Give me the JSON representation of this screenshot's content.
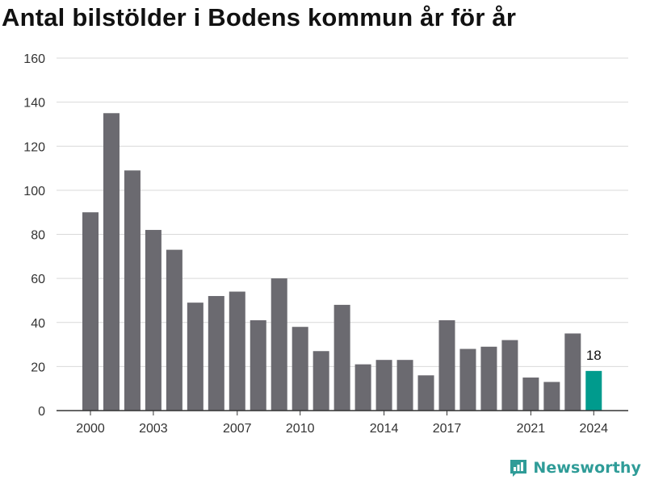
{
  "page": {
    "title": "Antal bilstölder i Bodens kommun år för år",
    "brand": "Newsworthy",
    "brand_icon": "newsworthy-logo-icon"
  },
  "colors": {
    "bar": "#6b6a70",
    "highlight": "#009b8d",
    "grid": "#d9d9d9",
    "axis": "#333333",
    "text": "#333333",
    "brand": "#2f9c98"
  },
  "chart_data": {
    "type": "bar",
    "title": "Antal bilstölder i Bodens kommun år för år",
    "xlabel": "",
    "ylabel": "",
    "categories": [
      "2000",
      "2001",
      "2002",
      "2003",
      "2004",
      "2005",
      "2006",
      "2007",
      "2008",
      "2009",
      "2010",
      "2011",
      "2012",
      "2013",
      "2014",
      "2015",
      "2016",
      "2017",
      "2018",
      "2019",
      "2020",
      "2021",
      "2022",
      "2023",
      "2024"
    ],
    "values": [
      90,
      135,
      109,
      82,
      73,
      49,
      52,
      54,
      41,
      60,
      38,
      27,
      48,
      21,
      23,
      23,
      16,
      41,
      28,
      29,
      32,
      15,
      13,
      35,
      18
    ],
    "x_tick_labels": [
      "2000",
      "2003",
      "2007",
      "2010",
      "2014",
      "2017",
      "2021",
      "2024"
    ],
    "y_ticks": [
      0,
      20,
      40,
      60,
      80,
      100,
      120,
      140,
      160
    ],
    "ylim": [
      0,
      160
    ],
    "grid": true,
    "highlight": {
      "category": "2024",
      "label": "18"
    }
  }
}
